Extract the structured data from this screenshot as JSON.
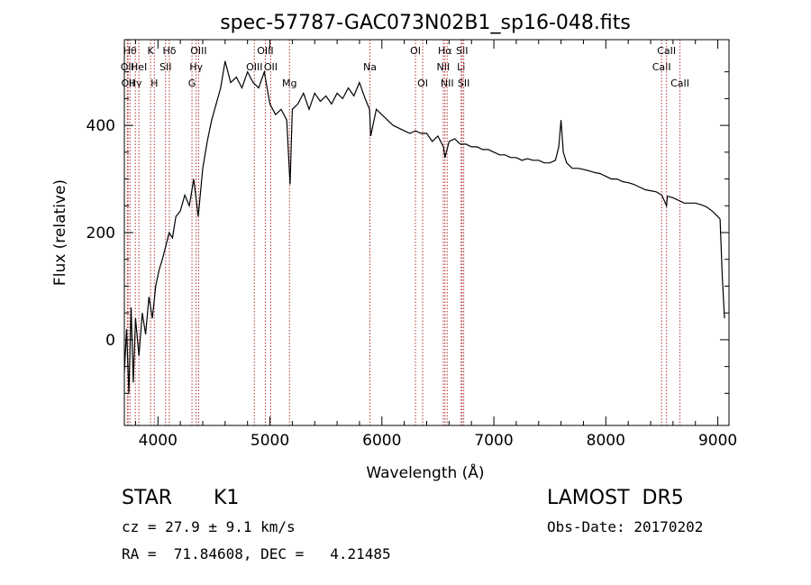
{
  "chart_data": {
    "type": "line",
    "title": "spec-57787-GAC073N02B1_sp16-048.fits",
    "xlabel": "Wavelength (Å)",
    "ylabel": "Flux (relative)",
    "xlim": [
      3700,
      9100
    ],
    "ylim": [
      -160,
      560
    ],
    "xticks": [
      4000,
      5000,
      6000,
      7000,
      8000,
      9000
    ],
    "yticks": [
      0,
      200,
      400
    ],
    "grid": false,
    "series": [
      {
        "x": [
          3700,
          3720,
          3740,
          3760,
          3780,
          3800,
          3830,
          3860,
          3890,
          3920,
          3950,
          3980,
          4010,
          4040,
          4070,
          4100,
          4130,
          4160,
          4200,
          4240,
          4280,
          4320,
          4360,
          4400,
          4440,
          4480,
          4520,
          4560,
          4600,
          4650,
          4700,
          4750,
          4800,
          4850,
          4900,
          4950,
          5000,
          5050,
          5100,
          5150,
          5180,
          5200,
          5250,
          5300,
          5350,
          5400,
          5450,
          5500,
          5550,
          5600,
          5650,
          5700,
          5750,
          5800,
          5850,
          5890,
          5900,
          5950,
          6000,
          6050,
          6100,
          6150,
          6200,
          6250,
          6300,
          6350,
          6400,
          6450,
          6500,
          6550,
          6563,
          6600,
          6650,
          6700,
          6750,
          6800,
          6850,
          6900,
          6950,
          7000,
          7050,
          7100,
          7150,
          7200,
          7250,
          7300,
          7350,
          7400,
          7450,
          7500,
          7550,
          7580,
          7600,
          7620,
          7650,
          7700,
          7750,
          7800,
          7850,
          7900,
          7950,
          8000,
          8050,
          8100,
          8150,
          8200,
          8250,
          8300,
          8350,
          8400,
          8450,
          8500,
          8542,
          8550,
          8600,
          8650,
          8700,
          8750,
          8800,
          8850,
          8900,
          8950,
          9000,
          9020,
          9040,
          9060
        ],
        "y": [
          -60,
          20,
          -100,
          60,
          -80,
          40,
          -30,
          50,
          10,
          80,
          40,
          100,
          130,
          150,
          175,
          200,
          190,
          230,
          240,
          270,
          250,
          300,
          230,
          320,
          370,
          410,
          440,
          470,
          520,
          480,
          490,
          470,
          500,
          480,
          470,
          500,
          440,
          420,
          430,
          410,
          290,
          430,
          440,
          460,
          430,
          460,
          445,
          455,
          440,
          460,
          450,
          470,
          455,
          480,
          450,
          430,
          380,
          430,
          420,
          410,
          400,
          395,
          390,
          385,
          390,
          385,
          385,
          370,
          380,
          360,
          340,
          370,
          375,
          365,
          365,
          360,
          360,
          355,
          355,
          350,
          345,
          345,
          340,
          340,
          335,
          338,
          335,
          335,
          330,
          330,
          335,
          360,
          410,
          350,
          330,
          320,
          320,
          318,
          315,
          312,
          310,
          305,
          300,
          300,
          295,
          293,
          290,
          285,
          280,
          278,
          276,
          270,
          250,
          268,
          265,
          260,
          255,
          255,
          255,
          252,
          248,
          240,
          230,
          225,
          120,
          40
        ]
      }
    ],
    "line_markers": [
      {
        "x": 3750,
        "label": "Hθ",
        "row": 0
      },
      {
        "x": 3727,
        "label": "OII",
        "row": 1
      },
      {
        "x": 3733,
        "label": "OII",
        "row": 2
      },
      {
        "x": 3798,
        "label": "Hγ",
        "row": 2
      },
      {
        "x": 3830,
        "label": "HeI",
        "row": 1
      },
      {
        "x": 3934,
        "label": "K",
        "row": 0
      },
      {
        "x": 3968,
        "label": "H",
        "row": 2
      },
      {
        "x": 4068,
        "label": "SII",
        "row": 1
      },
      {
        "x": 4102,
        "label": "Hδ",
        "row": 0
      },
      {
        "x": 4304,
        "label": "G",
        "row": 2
      },
      {
        "x": 4341,
        "label": "Hγ",
        "row": 1
      },
      {
        "x": 4363,
        "label": "OIII",
        "row": 0
      },
      {
        "x": 4861,
        "label": "OIII",
        "row": 1
      },
      {
        "x": 4959,
        "label": "OIII",
        "row": 0
      },
      {
        "x": 5007,
        "label": "OII",
        "row": 1
      },
      {
        "x": 5175,
        "label": "Mg",
        "row": 2
      },
      {
        "x": 5893,
        "label": "Na",
        "row": 1
      },
      {
        "x": 6300,
        "label": "OI",
        "row": 0
      },
      {
        "x": 6364,
        "label": "OI",
        "row": 2
      },
      {
        "x": 6548,
        "label": "NII",
        "row": 1
      },
      {
        "x": 6563,
        "label": "Hα",
        "row": 0
      },
      {
        "x": 6583,
        "label": "NII",
        "row": 2
      },
      {
        "x": 6708,
        "label": "Li",
        "row": 1
      },
      {
        "x": 6716,
        "label": "SII",
        "row": 0
      },
      {
        "x": 6731,
        "label": "SII",
        "row": 2
      },
      {
        "x": 8498,
        "label": "CaII",
        "row": 1
      },
      {
        "x": 8542,
        "label": "CaII",
        "row": 0
      },
      {
        "x": 8662,
        "label": "CaII",
        "row": 2
      }
    ]
  },
  "info": {
    "object_class": "STAR",
    "subclass": "K1",
    "survey": "LAMOST  DR5",
    "cz": "cz = 27.9 ± 9.1 km/s",
    "obs_date": "Obs-Date: 20170202",
    "radec": "RA =  71.84608, DEC =   4.21485"
  },
  "colors": {
    "line": "#000000",
    "marker": "#b03030",
    "axis": "#000000"
  }
}
